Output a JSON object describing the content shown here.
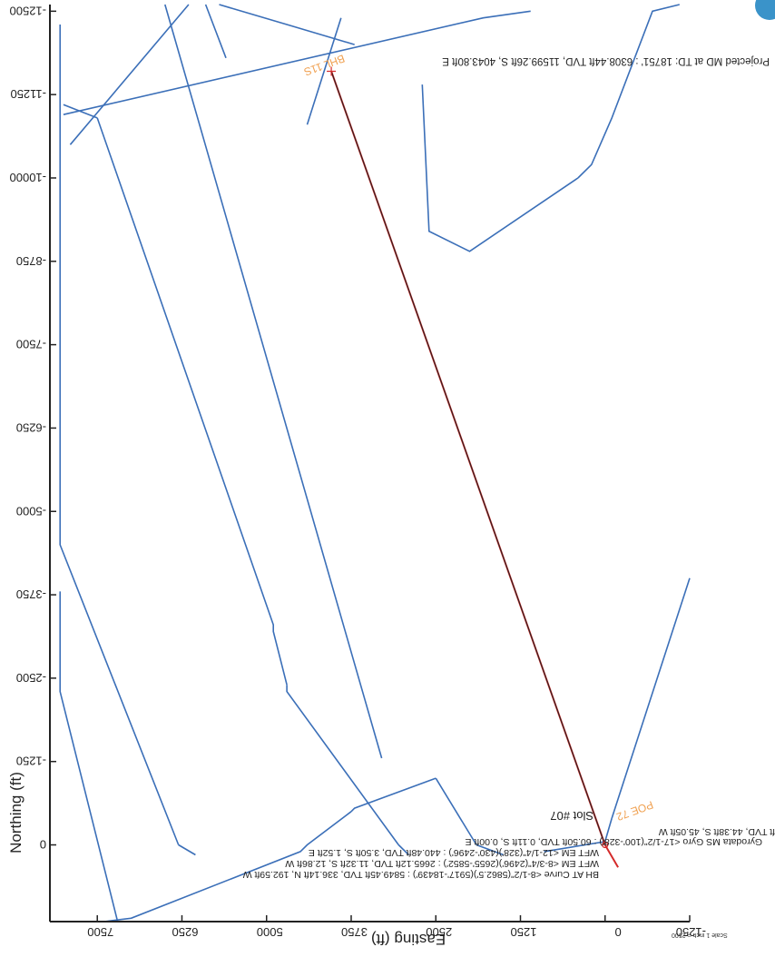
{
  "chart_data": {
    "type": "line",
    "ylabel": "Northing (ft)",
    "xlabel": "Easting (ft)",
    "scale_note": "Scale 1 inch = 2500",
    "x_ticks": [
      -1250,
      0,
      1250,
      2500,
      3750,
      5000,
      6250,
      7500
    ],
    "y_ticks": [
      0,
      1250,
      2500,
      3750,
      5000,
      6250,
      7500,
      8750,
      10000,
      11250,
      12500
    ],
    "x_tick_labels": [
      "-1250",
      "0",
      "1250",
      "2500",
      "3750",
      "5000",
      "6250",
      "7500"
    ],
    "y_tick_labels": [
      "0",
      "-1250",
      "-2500",
      "-3750",
      "-5000",
      "-6250",
      "-7500",
      "-8750",
      "-10000",
      "-11250",
      "-12500"
    ],
    "xlim": [
      -1250,
      8200
    ],
    "ylim": [
      -1150,
      12600
    ],
    "series": [
      {
        "color": "#d42a2a",
        "x": [
          -193,
          0,
          4043.8
        ],
        "y": [
          -336,
          0,
          11599
        ]
      },
      {
        "color": "#222222",
        "x": [
          0,
          1000,
          2000,
          3000,
          4043.8
        ],
        "y": [
          0,
          2870,
          5740,
          8610,
          11599
        ]
      }
    ],
    "boundaries": [
      {
        "color": "#3b6fb8",
        "x": [
          7900,
          6150
        ],
        "y": [
          10500,
          12600
        ]
      },
      {
        "color": "#3b6fb8",
        "x": [
          6500,
          3300
        ],
        "y": [
          12600,
          1300
        ]
      },
      {
        "color": "#3b6fb8",
        "x": [
          7400,
          7000,
          4500,
          4400,
          3750
        ],
        "y": [
          -1150,
          -1100,
          -100,
          0,
          500
        ]
      },
      {
        "color": "#3b6fb8",
        "x": [
          3750,
          3700,
          2500
        ],
        "y": [
          500,
          550,
          1000
        ]
      },
      {
        "color": "#3b6fb8",
        "x": [
          2500,
          1900
        ],
        "y": [
          1000,
          0
        ]
      },
      {
        "color": "#3b6fb8",
        "x": [
          1900,
          1500
        ],
        "y": [
          0,
          -150
        ]
      },
      {
        "color": "#3b6fb8",
        "x": [
          900,
          0,
          -100
        ],
        "y": [
          -100,
          50,
          400
        ]
      },
      {
        "color": "#3b6fb8",
        "x": [
          -100,
          -1250
        ],
        "y": [
          400,
          4000
        ]
      },
      {
        "color": "#3b6fb8",
        "x": [
          4400,
          3900
        ],
        "y": [
          10800,
          12400
        ]
      },
      {
        "color": "#3b6fb8",
        "x": [
          8000,
          1800,
          1100
        ],
        "y": [
          10950,
          12400,
          12500
        ]
      },
      {
        "color": "#3b6fb8",
        "x": [
          8000,
          7500
        ],
        "y": [
          11100,
          10900
        ]
      },
      {
        "color": "#3b6fb8",
        "x": [
          7500,
          4900,
          4900,
          4700
        ],
        "y": [
          10900,
          3300,
          3200,
          2400
        ]
      },
      {
        "color": "#3b6fb8",
        "x": [
          4700,
          4700,
          3050
        ],
        "y": [
          2400,
          2300,
          0
        ]
      },
      {
        "color": "#3b6fb8",
        "x": [
          3050,
          2900
        ],
        "y": [
          0,
          -150
        ]
      },
      {
        "color": "#3b6fb8",
        "x": [
          8050,
          8050,
          6300
        ],
        "y": [
          12300,
          4500,
          0
        ]
      },
      {
        "color": "#3b6fb8",
        "x": [
          6300,
          6050
        ],
        "y": [
          0,
          -150
        ]
      },
      {
        "color": "#3b6fb8",
        "x": [
          8050,
          8050,
          7200
        ],
        "y": [
          3800,
          2300,
          -1150
        ]
      },
      {
        "color": "#3b6fb8",
        "x": [
          2700,
          2600,
          2000,
          400
        ],
        "y": [
          11400,
          9200,
          8900,
          10000
        ]
      },
      {
        "color": "#3b6fb8",
        "x": [
          400,
          200,
          -100,
          -700,
          -1100
        ],
        "y": [
          10000,
          10200,
          10900,
          12500,
          12600
        ]
      },
      {
        "color": "#3b6fb8",
        "x": [
          5700,
          4700,
          3700
        ],
        "y": [
          12600,
          12300,
          12000
        ]
      },
      {
        "color": "#3b6fb8",
        "x": [
          5900,
          5600
        ],
        "y": [
          12600,
          11800
        ]
      }
    ]
  },
  "annotations": {
    "projected_md": "Projected MD at TD: 18751' : 6308.44ft TVD, 11599.26ft S, 4043.80ft E",
    "bhl": "BHL 11S",
    "poe": "POE 72",
    "slot": "Slot #07",
    "survey_1": "BH AT Curve <8-1/2\"(5862.5')(5917'-18439') : 5849.45ft TVD, 336.14ft N, 192.59ft W",
    "survey_2": "WFT EM <8-3/4\"(2496')(2655'-5852') : 2665.12ft TVD, 11.32ft S, 12.86ft W",
    "survey_3": "WFT EM <12-1/4\"(328')(430'-2496') : 440.48ft TVD, 3.50ft S, 1.52ft E",
    "survey_4": "Gyrodata MS Gyro <17-1/2\"(100'-328') : 60.50ft TVD, 0.11ft S, 0.00ft E",
    "survey_5": "ft TVD, 44.38ft S, 45.05ft W"
  },
  "colors": {
    "axis": "#222222",
    "boundary": "#3b6fb8",
    "trajectory": "#d42a2a",
    "plan": "#222222",
    "label_orange": "#f0a050",
    "text": "#222222"
  }
}
